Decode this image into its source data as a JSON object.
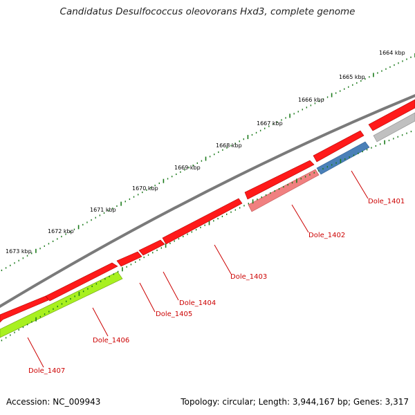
{
  "title": "Candidatus Desulfococcus oleovorans Hxd3, complete genome",
  "accession_text": "Accession: NC_009943",
  "info_text": "Topology: circular; Length: 3,944,167 bp; Genes: 3,317",
  "scale_labels": [
    "1664 kbp",
    "1665 kbp",
    "1666 kbp",
    "1667 kbp",
    "1668 kbp",
    "1669 kbp",
    "1670 kbp",
    "1671 kbp",
    "1672 kbp",
    "1673 kbp"
  ],
  "gene_labels": [
    "Dole_1401",
    "Dole_1402",
    "Dole_1403",
    "Dole_1404",
    "Dole_1405",
    "Dole_1406",
    "Dole_1407"
  ],
  "colors": {
    "forward_gene": "#ff1a1a",
    "reverse_gene_1401": "#4a80b8",
    "reverse_gene_1402": "#f08080",
    "reverse_gene_1407": "#a8f020",
    "reverse_gene_grey": "#c0c0c0",
    "backbone": "#808080",
    "tick": "#1a7a1a",
    "label": "#cc0000"
  }
}
